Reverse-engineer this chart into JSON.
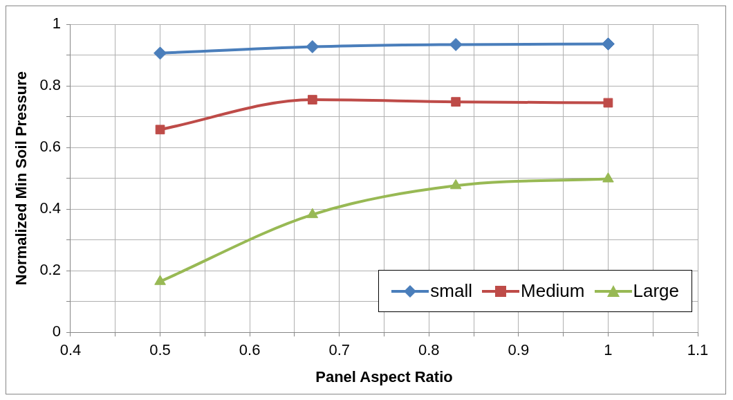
{
  "chart_data": {
    "type": "line",
    "xlabel": "Panel Aspect Ratio",
    "ylabel": "Normalized Min Soil Pressure",
    "x": [
      0.5,
      0.67,
      0.83,
      1
    ],
    "series": [
      {
        "name": "small",
        "color": "#4a7ebb",
        "marker": "diamond",
        "values": [
          0.906,
          0.927,
          0.934,
          0.936
        ]
      },
      {
        "name": "Medium",
        "color": "#be4b48",
        "marker": "square",
        "values": [
          0.658,
          0.755,
          0.748,
          0.745
        ]
      },
      {
        "name": "Large",
        "color": "#98b954",
        "marker": "triangle",
        "values": [
          0.165,
          0.382,
          0.476,
          0.498
        ]
      }
    ],
    "xlim": [
      0.4,
      1.1
    ],
    "xticks": [
      0.4,
      {
        "value": 0.45,
        "label": null
      },
      0.5,
      {
        "value": 0.55,
        "label": null
      },
      0.6,
      {
        "value": 0.65,
        "label": null
      },
      0.7,
      {
        "value": 0.75,
        "label": null
      },
      0.8,
      {
        "value": 0.85,
        "label": null
      },
      0.9,
      {
        "value": 0.95,
        "label": null
      },
      1,
      {
        "value": 1.05,
        "label": null
      },
      1.1
    ],
    "ylim": [
      0,
      1
    ],
    "yticks": [
      0,
      {
        "value": 0.1,
        "label": null
      },
      0.2,
      {
        "value": 0.3,
        "label": null
      },
      0.4,
      {
        "value": 0.5,
        "label": null
      },
      0.6,
      {
        "value": 0.7,
        "label": null
      },
      0.8,
      {
        "value": 0.9,
        "label": null
      },
      1
    ],
    "grid": true,
    "legend": "bottom right",
    "line_style": "solid"
  }
}
